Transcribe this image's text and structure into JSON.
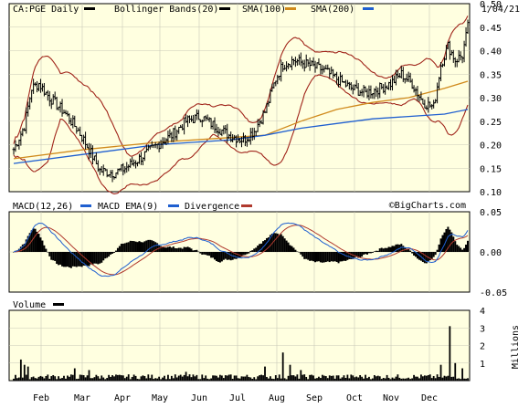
{
  "chart_data": [
    {
      "type": "candlestick",
      "symbol": "CA:PGE",
      "legend": [
        {
          "label": "CA:PGE Daily",
          "color": "#000000"
        },
        {
          "label": "Bollinger Bands(20)",
          "color": "#000000"
        },
        {
          "label": "SMA(100)",
          "color": "#d08a1c"
        },
        {
          "label": "SMA(200)",
          "color": "#1f5fd0"
        }
      ],
      "date_label": "1/04/21",
      "ylim": [
        0.1,
        0.5
      ],
      "y_ticks": [
        "0.50",
        "0.45",
        "0.40",
        "0.35",
        "0.30",
        "0.25",
        "0.20",
        "0.15",
        "0.10"
      ],
      "x_months": [
        "Feb",
        "Mar",
        "Apr",
        "May",
        "Jun",
        "Jul",
        "Aug",
        "Sep",
        "Oct",
        "Nov",
        "Dec"
      ],
      "anchors": [
        {
          "t": 0,
          "v": 0.19
        },
        {
          "t": 6,
          "v": 0.24
        },
        {
          "t": 10,
          "v": 0.32
        },
        {
          "t": 14,
          "v": 0.33
        },
        {
          "t": 20,
          "v": 0.3
        },
        {
          "t": 28,
          "v": 0.27
        },
        {
          "t": 36,
          "v": 0.23
        },
        {
          "t": 42,
          "v": 0.19
        },
        {
          "t": 48,
          "v": 0.145
        },
        {
          "t": 56,
          "v": 0.14
        },
        {
          "t": 62,
          "v": 0.15
        },
        {
          "t": 70,
          "v": 0.17
        },
        {
          "t": 80,
          "v": 0.2
        },
        {
          "t": 88,
          "v": 0.22
        },
        {
          "t": 96,
          "v": 0.25
        },
        {
          "t": 104,
          "v": 0.26
        },
        {
          "t": 112,
          "v": 0.24
        },
        {
          "t": 120,
          "v": 0.22
        },
        {
          "t": 128,
          "v": 0.21
        },
        {
          "t": 134,
          "v": 0.23
        },
        {
          "t": 140,
          "v": 0.27
        },
        {
          "t": 146,
          "v": 0.34
        },
        {
          "t": 150,
          "v": 0.37
        },
        {
          "t": 156,
          "v": 0.38
        },
        {
          "t": 164,
          "v": 0.37
        },
        {
          "t": 172,
          "v": 0.36
        },
        {
          "t": 180,
          "v": 0.34
        },
        {
          "t": 188,
          "v": 0.32
        },
        {
          "t": 196,
          "v": 0.31
        },
        {
          "t": 204,
          "v": 0.32
        },
        {
          "t": 210,
          "v": 0.33
        },
        {
          "t": 216,
          "v": 0.35
        },
        {
          "t": 222,
          "v": 0.33
        },
        {
          "t": 228,
          "v": 0.29
        },
        {
          "t": 234,
          "v": 0.28
        },
        {
          "t": 238,
          "v": 0.37
        },
        {
          "t": 242,
          "v": 0.41
        },
        {
          "t": 246,
          "v": 0.38
        },
        {
          "t": 250,
          "v": 0.39
        },
        {
          "t": 253,
          "v": 0.45
        }
      ],
      "sma100": [
        [
          0.17,
          0
        ],
        [
          0.19,
          40
        ],
        [
          0.205,
          80
        ],
        [
          0.215,
          120
        ],
        [
          0.22,
          140
        ],
        [
          0.25,
          160
        ],
        [
          0.275,
          180
        ],
        [
          0.29,
          200
        ],
        [
          0.3,
          220
        ],
        [
          0.32,
          240
        ],
        [
          0.335,
          253
        ]
      ],
      "sma200": [
        [
          0.16,
          0
        ],
        [
          0.18,
          40
        ],
        [
          0.2,
          80
        ],
        [
          0.21,
          120
        ],
        [
          0.22,
          140
        ],
        [
          0.235,
          160
        ],
        [
          0.245,
          180
        ],
        [
          0.255,
          200
        ],
        [
          0.26,
          220
        ],
        [
          0.265,
          240
        ],
        [
          0.275,
          253
        ]
      ]
    },
    {
      "type": "line",
      "title": "MACD(12,26)",
      "legend": [
        {
          "label": "MACD(12,26)",
          "color": "#1f5fd0"
        },
        {
          "label": "MACD EMA(9)",
          "color": "#1f5fd0"
        },
        {
          "label": "Divergence",
          "color": "#b03a2e"
        }
      ],
      "watermark": "©BigCharts.com",
      "ylim": [
        -0.05,
        0.05
      ],
      "y_ticks": [
        "0.05",
        "0.00",
        "-0.05"
      ]
    },
    {
      "type": "bar",
      "title": "Volume",
      "ylim": [
        0,
        4
      ],
      "y_ticks": [
        "4",
        "3",
        "2",
        "1"
      ],
      "unit_label": "Millions"
    }
  ]
}
